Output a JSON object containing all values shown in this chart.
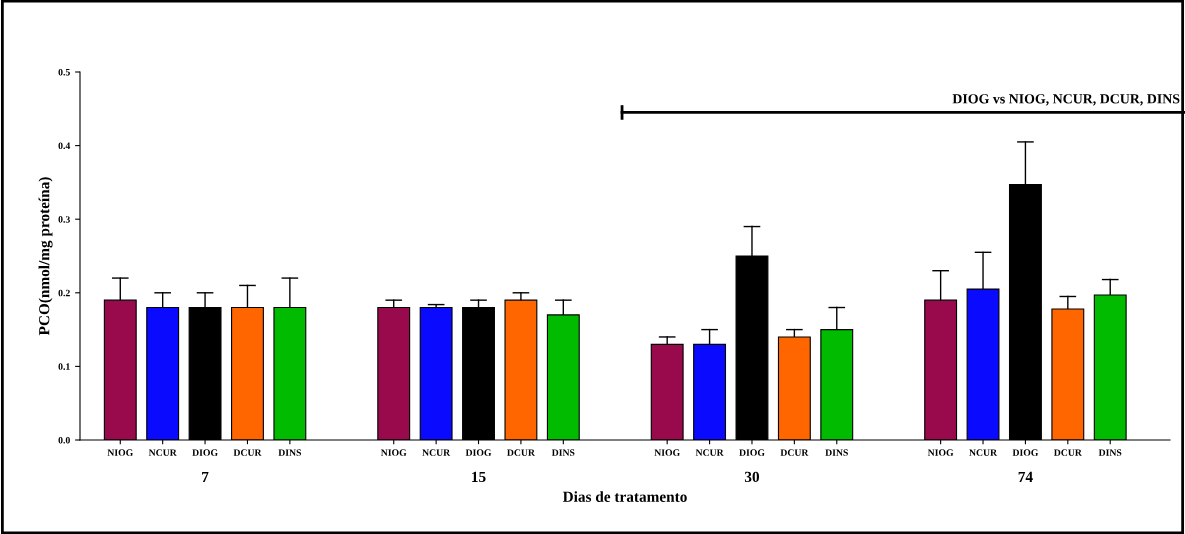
{
  "chart_data": {
    "type": "bar",
    "xlabel": "Dias de tratamento",
    "ylabel": "PCO(nmol/mg proteína)",
    "categories": [
      "NIOG",
      "NCUR",
      "DIOG",
      "DCUR",
      "DINS",
      "NIOG",
      "NCUR",
      "DIOG",
      "DCUR",
      "DINS",
      "NIOG",
      "NCUR",
      "DIOG",
      "DCUR",
      "DINS",
      "NIOG",
      "NCUR",
      "DIOG",
      "DCUR",
      "DINS"
    ],
    "values": [
      0.19,
      0.18,
      0.18,
      0.18,
      0.18,
      0.18,
      0.18,
      0.18,
      0.19,
      0.17,
      0.13,
      0.13,
      0.25,
      0.14,
      0.15,
      0.19,
      0.205,
      0.347,
      0.178,
      0.197
    ],
    "errors": [
      [
        0.19,
        0.22
      ],
      [
        0.18,
        0.2
      ],
      [
        0.18,
        0.2
      ],
      [
        0.18,
        0.21
      ],
      [
        0.18,
        0.22
      ],
      [
        0.18,
        0.19
      ],
      [
        0.18,
        0.184
      ],
      [
        0.18,
        0.19
      ],
      [
        0.19,
        0.2
      ],
      [
        0.17,
        0.19
      ],
      [
        0.13,
        0.14
      ],
      [
        0.13,
        0.15
      ],
      [
        0.25,
        0.29
      ],
      [
        0.14,
        0.15
      ],
      [
        0.15,
        0.18
      ],
      [
        0.19,
        0.23
      ],
      [
        0.205,
        0.255
      ],
      [
        0.347,
        0.405
      ],
      [
        0.178,
        0.195
      ],
      [
        0.197,
        0.218
      ]
    ],
    "colors": [
      "#990a4c",
      "#0a0aff",
      "#000000",
      "#ff6600",
      "#00bb00",
      "#990a4c",
      "#0a0aff",
      "#000000",
      "#ff6600",
      "#00bb00",
      "#990a4c",
      "#0a0aff",
      "#000000",
      "#ff6600",
      "#00bb00",
      "#990a4c",
      "#0a0aff",
      "#000000",
      "#ff6600",
      "#00bb00"
    ],
    "ylim": [
      0,
      0.5
    ],
    "yticks": [
      {
        "value": 0,
        "label": "0.0"
      },
      0.1,
      0.2,
      0.3,
      0.4,
      0.5
    ],
    "annotations": [
      "DIOG vs NIOG, NCUR, DCUR, DINS",
      "7",
      "15",
      "30",
      "74"
    ],
    "grid": false
  }
}
